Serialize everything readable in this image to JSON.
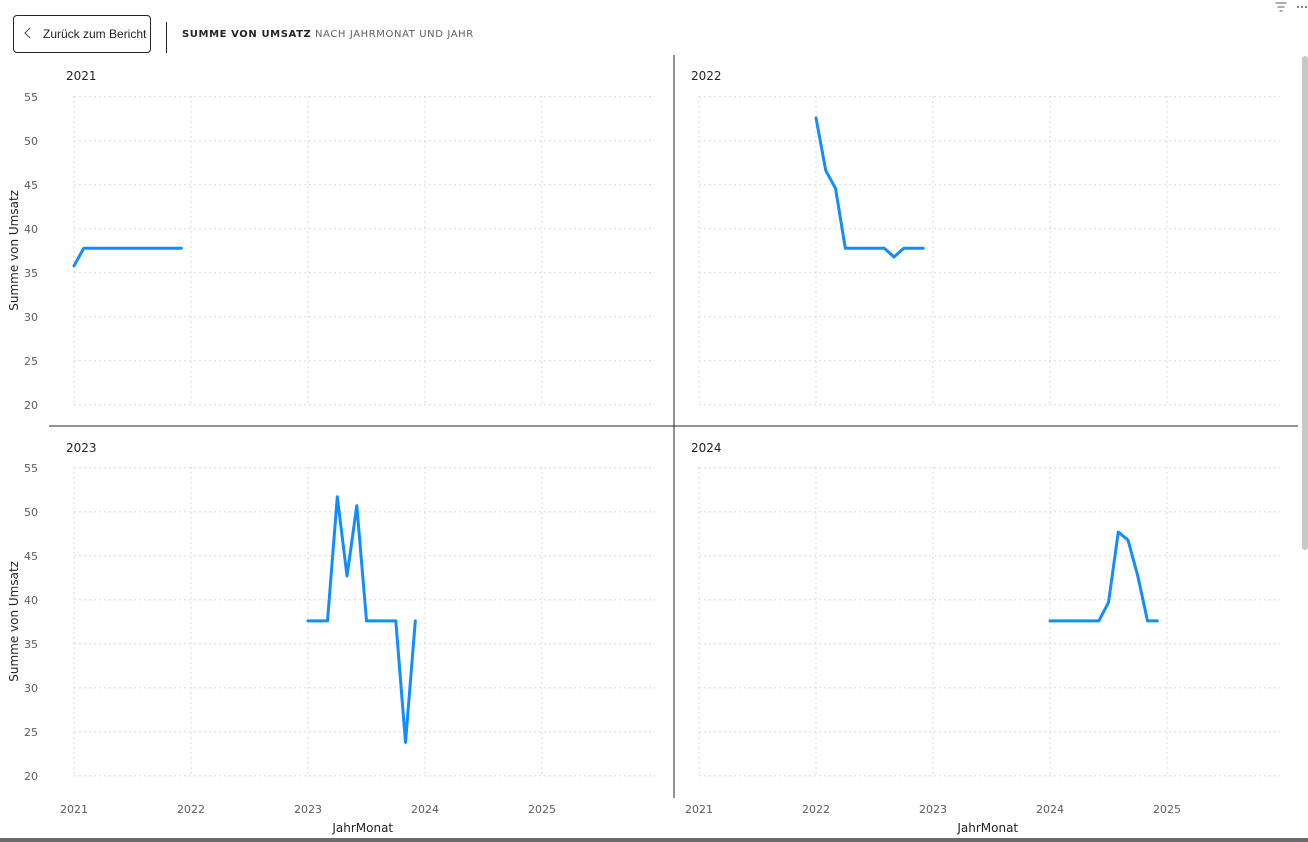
{
  "header": {
    "back_button_label": "Zurück zum Bericht",
    "tabs": [
      "SUMME VON UMSATZ",
      "NACH JAHRMONAT UND JAHR"
    ]
  },
  "icons": {
    "back": "chevron-left-icon",
    "filter": "filter-icon",
    "more": "more-options-icon"
  },
  "colors": {
    "series": "#118DFF",
    "divider": "#252423",
    "grid": "#D8D8D8"
  },
  "chart_data": {
    "type": "line",
    "layout": "small-multiples",
    "xlabel": "JahrMonat",
    "ylabel": "Summe von Umsatz",
    "x_ticks": [
      "2021",
      "2022",
      "2023",
      "2024",
      "2025"
    ],
    "y_ticks": [
      55,
      50,
      45,
      40,
      35,
      30,
      25,
      20
    ],
    "ylim": [
      20,
      55
    ],
    "xlim": [
      "2021-01",
      "2025-12"
    ],
    "grid": true,
    "panels": [
      {
        "title": "2021",
        "x": [
          "2021-01",
          "2021-02",
          "2021-03",
          "2021-04",
          "2021-05",
          "2021-06",
          "2021-07",
          "2021-08",
          "2021-09",
          "2021-10",
          "2021-11",
          "2021-12"
        ],
        "values": [
          35.8,
          37.8,
          37.8,
          37.8,
          37.8,
          37.8,
          37.8,
          37.8,
          37.8,
          37.8,
          37.8,
          37.8
        ]
      },
      {
        "title": "2022",
        "x": [
          "2022-01",
          "2022-02",
          "2022-03",
          "2022-04",
          "2022-05",
          "2022-06",
          "2022-07",
          "2022-08",
          "2022-09",
          "2022-10",
          "2022-11",
          "2022-12"
        ],
        "values": [
          52.6,
          46.6,
          44.6,
          37.8,
          37.8,
          37.8,
          37.8,
          37.8,
          36.8,
          37.8,
          37.8,
          37.8
        ]
      },
      {
        "title": "2023",
        "x": [
          "2023-01",
          "2023-02",
          "2023-03",
          "2023-04",
          "2023-05",
          "2023-06",
          "2023-07",
          "2023-08",
          "2023-09",
          "2023-10",
          "2023-11",
          "2023-12"
        ],
        "values": [
          37.6,
          37.6,
          37.6,
          51.7,
          42.7,
          50.7,
          37.6,
          37.6,
          37.6,
          37.6,
          23.8,
          37.6
        ]
      },
      {
        "title": "2024",
        "x": [
          "2024-01",
          "2024-02",
          "2024-03",
          "2024-04",
          "2024-05",
          "2024-06",
          "2024-07",
          "2024-08",
          "2024-09",
          "2024-10",
          "2024-11",
          "2024-12"
        ],
        "values": [
          37.6,
          37.6,
          37.6,
          37.6,
          37.6,
          37.6,
          39.7,
          47.7,
          46.8,
          42.7,
          37.6,
          37.6
        ]
      }
    ]
  }
}
